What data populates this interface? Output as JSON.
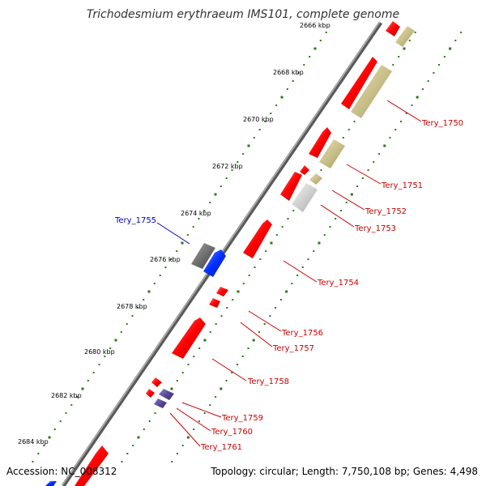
{
  "title": "Trichodesmium erythraeum IMS101, complete genome",
  "footer": {
    "accession": "Accession: NC_008312",
    "summary": "Topology: circular; Length: 7,750,108 bp; Genes: 4,498"
  },
  "kbp_labels": [
    "2666 kbp",
    "2668 kbp",
    "2670 kbp",
    "2672 kbp",
    "2674 kbp",
    "2676 kbp",
    "2678 kbp",
    "2680 kbp",
    "2682 kbp",
    "2684 kbp"
  ],
  "genes": [
    {
      "name": "Tery_1750",
      "color": "#cc0000"
    },
    {
      "name": "Tery_1751",
      "color": "#cc0000"
    },
    {
      "name": "Tery_1752",
      "color": "#cc0000"
    },
    {
      "name": "Tery_1753",
      "color": "#cc0000"
    },
    {
      "name": "Tery_1754",
      "color": "#cc0000"
    },
    {
      "name": "Tery_1755",
      "color": "#0000cc"
    },
    {
      "name": "Tery_1756",
      "color": "#cc0000"
    },
    {
      "name": "Tery_1757",
      "color": "#cc0000"
    },
    {
      "name": "Tery_1758",
      "color": "#cc0000"
    },
    {
      "name": "Tery_1759",
      "color": "#cc0000"
    },
    {
      "name": "Tery_1760",
      "color": "#cc0000"
    },
    {
      "name": "Tery_1761",
      "color": "#cc0000"
    }
  ],
  "colors": {
    "backbone": "#808080",
    "tick_dots": "#2a7a1a",
    "forward_feature": "#ff1a1a",
    "reverse_feature": "#1a3cff",
    "rna_feature": "#c8c08a",
    "pseudo_feature": "#5a4a9a",
    "grey_feature": "#707070"
  }
}
